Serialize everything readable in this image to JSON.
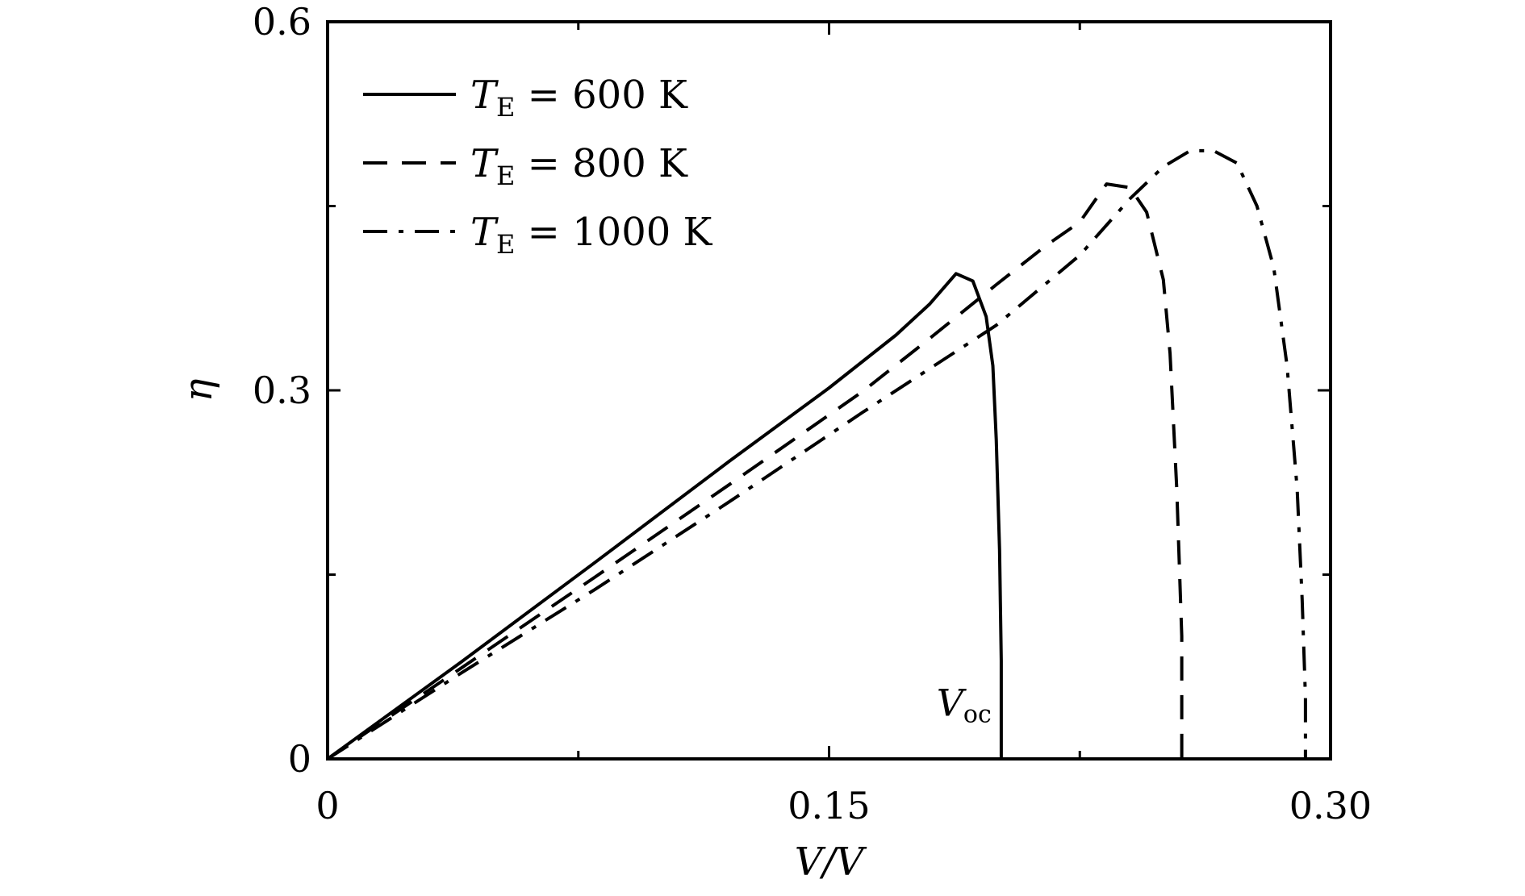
{
  "chart_data": {
    "type": "line",
    "title": "",
    "xlabel": "V/V",
    "ylabel": "η",
    "xlim": [
      0,
      0.3
    ],
    "ylim": [
      0,
      0.6
    ],
    "xticks": [
      0,
      0.15,
      0.3
    ],
    "xtick_labels": [
      "0",
      "0.15",
      "0.30"
    ],
    "xminor": [
      0.075,
      0.225
    ],
    "yticks": [
      0,
      0.3,
      0.6
    ],
    "ytick_labels": [
      "0",
      "0.3",
      "0.6"
    ],
    "yminor": [
      0.15,
      0.45
    ],
    "grid": false,
    "legend_position": "top-left",
    "annotations": [
      {
        "text": "V",
        "subscript": "oc",
        "x": 0.201,
        "y": 0.035
      }
    ],
    "series": [
      {
        "name": "T_E = 600 K",
        "legend_label": {
          "symbol": "T",
          "subscript": "E",
          "rest": " = 600 K"
        },
        "style": "solid",
        "x": [
          0,
          0.04,
          0.08,
          0.12,
          0.15,
          0.17,
          0.18,
          0.188,
          0.193,
          0.197,
          0.199,
          0.2,
          0.201,
          0.2015,
          0.2015
        ],
        "y": [
          0,
          0.079,
          0.16,
          0.242,
          0.302,
          0.345,
          0.37,
          0.395,
          0.389,
          0.36,
          0.32,
          0.26,
          0.17,
          0.08,
          0
        ]
      },
      {
        "name": "T_E = 800 K",
        "legend_label": {
          "symbol": "T",
          "subscript": "E",
          "rest": " = 800 K"
        },
        "style": "dashed",
        "x": [
          0,
          0.04,
          0.08,
          0.12,
          0.16,
          0.18,
          0.2,
          0.215,
          0.225,
          0.233,
          0.24,
          0.245,
          0.25,
          0.252,
          0.254,
          0.2555,
          0.2555
        ],
        "y": [
          0,
          0.074,
          0.148,
          0.223,
          0.299,
          0.342,
          0.386,
          0.418,
          0.437,
          0.468,
          0.465,
          0.445,
          0.39,
          0.33,
          0.22,
          0.1,
          0
        ]
      },
      {
        "name": "T_E = 1000 K",
        "legend_label": {
          "symbol": "T",
          "subscript": "E",
          "rest": " = 1000 K"
        },
        "style": "dashdot",
        "x": [
          0,
          0.04,
          0.08,
          0.12,
          0.16,
          0.2,
          0.225,
          0.24,
          0.25,
          0.258,
          0.265,
          0.272,
          0.278,
          0.283,
          0.287,
          0.29,
          0.2915,
          0.2925,
          0.2925
        ],
        "y": [
          0,
          0.07,
          0.138,
          0.209,
          0.282,
          0.353,
          0.41,
          0.456,
          0.482,
          0.495,
          0.495,
          0.485,
          0.45,
          0.4,
          0.32,
          0.22,
          0.13,
          0.05,
          0
        ]
      }
    ]
  }
}
